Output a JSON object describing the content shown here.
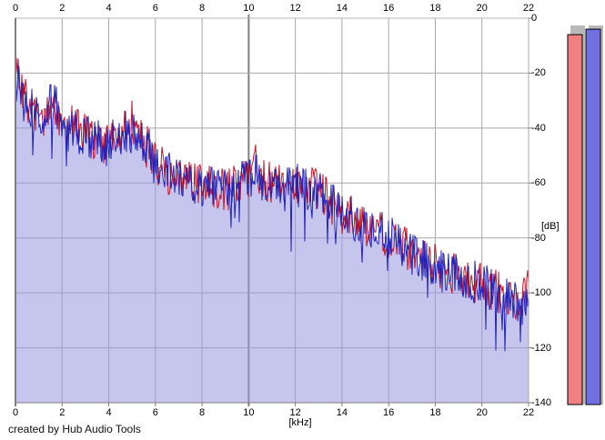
{
  "credit_text": "created by Hub Audio Tools",
  "chart_data": {
    "type": "line",
    "title": "",
    "xlabel": "[kHz]",
    "ylabel": "[dB]",
    "xlim": [
      0,
      22
    ],
    "ylim": [
      -140,
      0
    ],
    "x_ticks": [
      0,
      2,
      4,
      6,
      8,
      10,
      12,
      14,
      16,
      18,
      20,
      22
    ],
    "y_ticks": [
      0,
      -20,
      -40,
      -60,
      -80,
      -100,
      -120,
      -140
    ],
    "grid": true,
    "major_x_gridline_khz": 10,
    "x_step_khz": 0.25,
    "series": [
      {
        "name": "red spectrum trace",
        "color": "#c41227",
        "db": [
          -16,
          -26,
          -31,
          -34,
          -36,
          -35,
          -32,
          -34,
          -41,
          -42,
          -37,
          -42,
          -42,
          -44,
          -44,
          -46,
          -46,
          -44,
          -42,
          -41,
          -39,
          -42,
          -45,
          -48,
          -52,
          -54,
          -56,
          -58,
          -59,
          -59,
          -60,
          -60,
          -61,
          -61,
          -62,
          -62,
          -62,
          -62,
          -61,
          -59,
          -57,
          -52,
          -59,
          -60,
          -60,
          -60,
          -61,
          -61,
          -61,
          -61,
          -62,
          -62,
          -63,
          -65,
          -67,
          -69,
          -71,
          -72,
          -73,
          -74,
          -75,
          -76,
          -77,
          -78,
          -80,
          -81,
          -83,
          -84,
          -86,
          -87,
          -88,
          -89,
          -90,
          -91,
          -92,
          -93,
          -94,
          -95,
          -95,
          -96,
          -97,
          -98,
          -99,
          -100,
          -101,
          -102,
          -103,
          -104,
          -97
        ]
      },
      {
        "name": "blue spectrum trace",
        "color": "#2222bb",
        "fill_under": true,
        "fill_color": "rgba(150,150,224,0.55)",
        "db": [
          -16,
          -26,
          -32,
          -34,
          -36,
          -35,
          -30,
          -33,
          -41,
          -43,
          -41,
          -42,
          -43,
          -44,
          -44,
          -46,
          -46,
          -44,
          -42,
          -41,
          -42,
          -43,
          -45,
          -48,
          -52,
          -54,
          -56,
          -58,
          -59,
          -59,
          -60,
          -60,
          -61,
          -61,
          -62,
          -62,
          -62,
          -62,
          -61,
          -59,
          -57,
          -57,
          -59,
          -60,
          -60,
          -60,
          -61,
          -61,
          -61,
          -61,
          -62,
          -62,
          -63,
          -65,
          -67,
          -69,
          -71,
          -72,
          -73,
          -74,
          -75,
          -76,
          -77,
          -78,
          -80,
          -81,
          -83,
          -84,
          -86,
          -87,
          -88,
          -89,
          -90,
          -91,
          -92,
          -93,
          -94,
          -95,
          -95,
          -96,
          -97,
          -98,
          -99,
          -100,
          -101,
          -102,
          -103,
          -104,
          -97
        ]
      }
    ],
    "noise": {
      "amplitude_db": 8,
      "seeds": [
        7,
        13
      ],
      "blue_dip_chance": 0.05,
      "blue_dip_extra_db": 11
    },
    "spikes": [
      {
        "series": 0,
        "khz": 5.0,
        "db": -30
      },
      {
        "series": 0,
        "khz": 10.3,
        "db": -46
      },
      {
        "series": 1,
        "khz": 1.75,
        "db": -25
      },
      {
        "series": 1,
        "khz": 11.8,
        "db": -85
      },
      {
        "series": 1,
        "khz": 21.65,
        "db": -118
      }
    ],
    "meters": [
      {
        "name": "red level meter",
        "color": "#f08080",
        "value_db": -6
      },
      {
        "name": "blue level meter",
        "color": "#7070e0",
        "value_db": -4
      }
    ]
  },
  "colors": {
    "background": "#ffffff",
    "grid": "#a8a8a8",
    "grid_major": "#808080",
    "axis_dark": "#808080",
    "axis_light": "#b4b4b4",
    "meter_track": "#b9b9b9",
    "meter_outline": "#000000"
  }
}
